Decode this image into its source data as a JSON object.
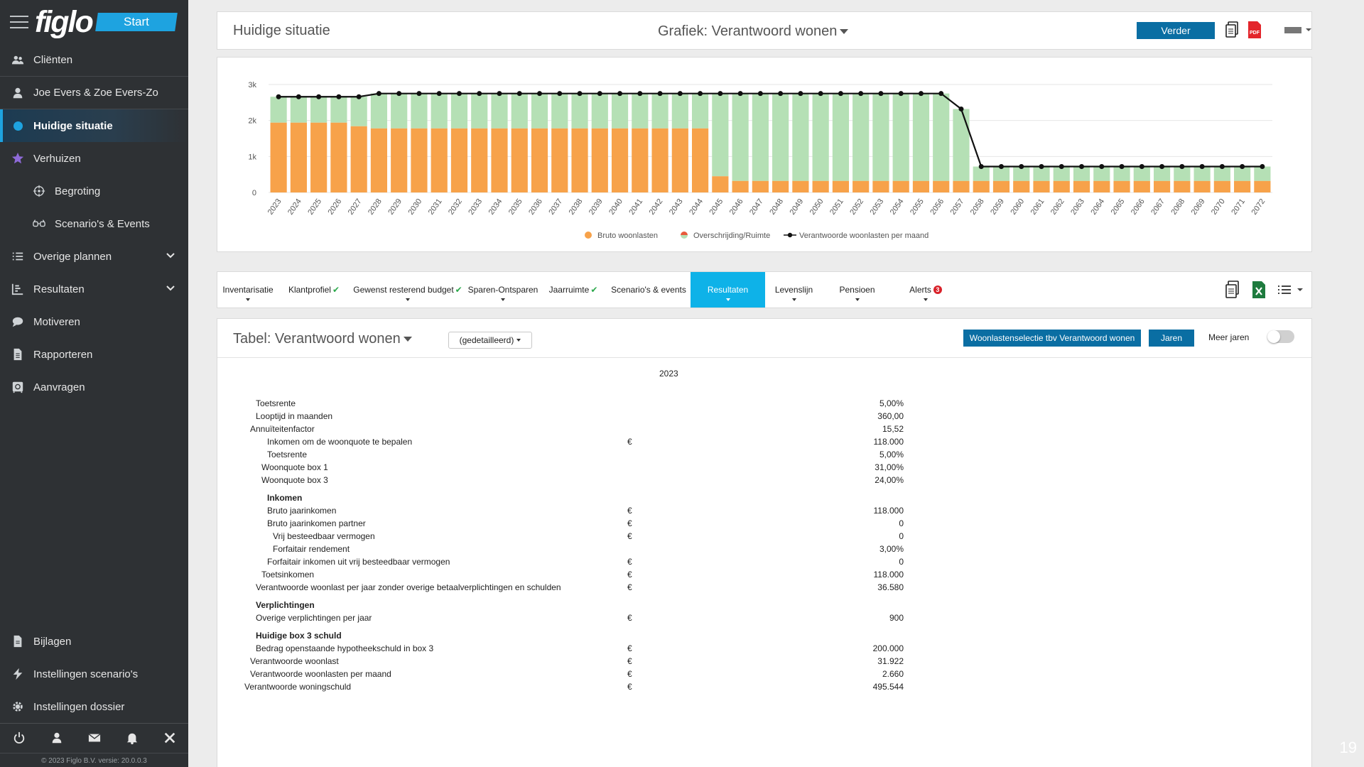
{
  "brand": {
    "logo": "figlo",
    "start": "Start"
  },
  "sidebar": {
    "items": [
      {
        "label": "Cliënten",
        "icon": "users-icon"
      },
      {
        "label": "Joe Evers & Zoe Evers-Zo",
        "icon": "user-icon"
      },
      {
        "label": "Huidige situatie",
        "icon": "active-dot-icon",
        "active": true
      },
      {
        "label": "Verhuizen",
        "icon": "star-icon"
      },
      {
        "label": "Begroting",
        "icon": "target-icon"
      },
      {
        "label": "Scenario's & Events",
        "icon": "glasses-icon"
      },
      {
        "label": "Overige plannen",
        "icon": "list-icon"
      },
      {
        "label": "Resultaten",
        "icon": "bar-chart-icon"
      },
      {
        "label": "Motiveren",
        "icon": "chat-icon"
      },
      {
        "label": "Rapporteren",
        "icon": "document-icon"
      },
      {
        "label": "Aanvragen",
        "icon": "safe-icon"
      }
    ],
    "bottom": [
      {
        "label": "Bijlagen",
        "icon": "file-icon"
      },
      {
        "label": "Instellingen scenario's",
        "icon": "bolt-icon"
      },
      {
        "label": "Instellingen dossier",
        "icon": "gear-icon"
      }
    ],
    "copyright": "© 2023 Figlo B.V. versie: 20.0.0.3"
  },
  "header": {
    "title": "Huidige situatie",
    "chart_select": "Grafiek:  Verantwoord wonen",
    "verder": "Verder"
  },
  "chart_data": {
    "type": "bar",
    "categories": [
      "2023",
      "2024",
      "2025",
      "2026",
      "2027",
      "2028",
      "2029",
      "2030",
      "2031",
      "2032",
      "2033",
      "2034",
      "2035",
      "2036",
      "2037",
      "2038",
      "2039",
      "2040",
      "2041",
      "2042",
      "2043",
      "2044",
      "2045",
      "2046",
      "2047",
      "2048",
      "2049",
      "2050",
      "2051",
      "2052",
      "2053",
      "2054",
      "2055",
      "2056",
      "2057",
      "2058",
      "2059",
      "2060",
      "2061",
      "2062",
      "2063",
      "2064",
      "2065",
      "2066",
      "2067",
      "2068",
      "2069",
      "2070",
      "2071",
      "2072"
    ],
    "series": [
      {
        "name": "Bruto woonlasten",
        "color": "#f7a24a",
        "values": [
          1940,
          1940,
          1940,
          1940,
          1840,
          1780,
          1780,
          1780,
          1780,
          1780,
          1780,
          1780,
          1780,
          1780,
          1780,
          1780,
          1780,
          1780,
          1780,
          1780,
          1780,
          1780,
          450,
          320,
          320,
          320,
          320,
          320,
          320,
          320,
          320,
          320,
          320,
          320,
          320,
          320,
          320,
          320,
          320,
          320,
          320,
          320,
          320,
          320,
          320,
          320,
          320,
          320,
          320,
          320
        ]
      },
      {
        "name": "Overschrijding/Ruimte",
        "color": "#b5e0b5",
        "values": [
          720,
          720,
          720,
          720,
          820,
          970,
          970,
          970,
          970,
          970,
          970,
          970,
          970,
          970,
          970,
          970,
          970,
          970,
          970,
          970,
          970,
          970,
          2300,
          2430,
          2430,
          2430,
          2430,
          2430,
          2430,
          2430,
          2430,
          2430,
          2430,
          2430,
          2000,
          400,
          400,
          400,
          400,
          400,
          400,
          400,
          400,
          400,
          400,
          400,
          400,
          400,
          400,
          400
        ]
      },
      {
        "name": "Verantwoorde woonlasten per maand",
        "color": "#111111",
        "values": [
          2660,
          2660,
          2660,
          2660,
          2660,
          2750,
          2750,
          2750,
          2750,
          2750,
          2750,
          2750,
          2750,
          2750,
          2750,
          2750,
          2750,
          2750,
          2750,
          2750,
          2750,
          2750,
          2750,
          2750,
          2750,
          2750,
          2750,
          2750,
          2750,
          2750,
          2750,
          2750,
          2750,
          2750,
          2320,
          720,
          720,
          720,
          720,
          720,
          720,
          720,
          720,
          720,
          720,
          720,
          720,
          720,
          720,
          720
        ]
      }
    ],
    "y_ticks": [
      "0",
      "1k",
      "2k",
      "3k"
    ],
    "ylim": [
      0,
      3000
    ],
    "legend_position": "bottom",
    "grid": true
  },
  "tabs": [
    {
      "label": "Inventarisatie",
      "check": false,
      "caret": true
    },
    {
      "label": "Klantprofiel",
      "check": true,
      "caret": false
    },
    {
      "label": "Gewenst resterend budget",
      "check": true,
      "caret": true
    },
    {
      "label": "Sparen-Ontsparen",
      "check": false,
      "caret": true
    },
    {
      "label": "Jaarruimte",
      "check": true,
      "caret": false
    },
    {
      "label": "Scenario's & events",
      "check": false,
      "caret": false
    },
    {
      "label": "Resultaten",
      "check": false,
      "caret": true,
      "active": true
    },
    {
      "label": "Levenslijn",
      "check": false,
      "caret": true
    },
    {
      "label": "Pensioen",
      "check": false,
      "caret": true
    },
    {
      "label": "Alerts",
      "check": false,
      "caret": true,
      "badge": "3"
    }
  ],
  "table": {
    "title": "Tabel:  Verantwoord wonen",
    "select": "(gedetailleerd)",
    "btn_woon": "Woonlastenselectie tbv Verantwoord wonen",
    "btn_jaren": "Jaren",
    "meer_jaren": "Meer jaren",
    "year": "2023",
    "rows": [
      {
        "label": "Toetsrente",
        "eur": "",
        "value": "5,00%",
        "indent": 1,
        "bold": false
      },
      {
        "label": "Looptijd in maanden",
        "eur": "",
        "value": "360,00",
        "indent": 1,
        "bold": false
      },
      {
        "label": "Annuïteitenfactor",
        "eur": "",
        "value": "15,52",
        "indent": 0,
        "bold": false
      },
      {
        "label": "Inkomen om de woonquote te bepalen",
        "eur": "€",
        "value": "118.000",
        "indent": 3,
        "bold": false
      },
      {
        "label": "Toetsrente",
        "eur": "",
        "value": "5,00%",
        "indent": 3,
        "bold": false
      },
      {
        "label": "Woonquote box 1",
        "eur": "",
        "value": "31,00%",
        "indent": 2,
        "bold": false
      },
      {
        "label": "Woonquote box 3",
        "eur": "",
        "value": "24,00%",
        "indent": 2,
        "bold": false
      },
      {
        "label": "Inkomen",
        "eur": "",
        "value": "",
        "indent": 3,
        "bold": true
      },
      {
        "label": "Bruto jaarinkomen",
        "eur": "€",
        "value": "118.000",
        "indent": 3,
        "bold": false
      },
      {
        "label": "Bruto jaarinkomen partner",
        "eur": "€",
        "value": "0",
        "indent": 3,
        "bold": false
      },
      {
        "label": "Vrij besteedbaar vermogen",
        "eur": "€",
        "value": "0",
        "indent": 4,
        "bold": false
      },
      {
        "label": "Forfaitair rendement",
        "eur": "",
        "value": "3,00%",
        "indent": 4,
        "bold": false
      },
      {
        "label": "Forfaitair inkomen uit vrij besteedbaar vermogen",
        "eur": "€",
        "value": "0",
        "indent": 3,
        "bold": false
      },
      {
        "label": "Toetsinkomen",
        "eur": "€",
        "value": "118.000",
        "indent": 2,
        "bold": false
      },
      {
        "label": "Verantwoorde woonlast per jaar zonder overige betaalverplichtingen en schulden",
        "eur": "€",
        "value": "36.580",
        "indent": 1,
        "bold": false
      },
      {
        "label": "Verplichtingen",
        "eur": "",
        "value": "",
        "indent": 1,
        "bold": true
      },
      {
        "label": "Overige verplichtingen per jaar",
        "eur": "€",
        "value": "900",
        "indent": 1,
        "bold": false
      },
      {
        "label": "Huidige box 3 schuld",
        "eur": "",
        "value": "",
        "indent": 1,
        "bold": true
      },
      {
        "label": "Bedrag openstaande hypotheekschuld in box 3",
        "eur": "€",
        "value": "200.000",
        "indent": 1,
        "bold": false
      },
      {
        "label": "Verantwoorde woonlast",
        "eur": "€",
        "value": "31.922",
        "indent": 0,
        "bold": false
      },
      {
        "label": "Verantwoorde woonlasten per maand",
        "eur": "€",
        "value": "2.660",
        "indent": 0,
        "bold": false
      },
      {
        "label": "Verantwoorde woningschuld",
        "eur": "€",
        "value": "495.544",
        "indent": -1,
        "bold": false
      }
    ]
  },
  "page_number": "19"
}
